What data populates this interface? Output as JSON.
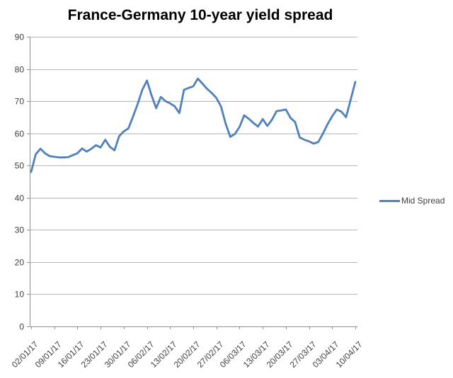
{
  "chart_data": {
    "type": "line",
    "title": "France-Germany 10-year yield spread",
    "xlabel": "",
    "ylabel": "",
    "ylim": [
      0,
      90
    ],
    "ytick_step": 10,
    "grid": "horizontal",
    "legend_position": "right",
    "x_ticklabels": [
      "02/01/17",
      "09/01/17",
      "16/01/17",
      "23/01/17",
      "30/01/17",
      "06/02/17",
      "13/02/17",
      "20/02/17",
      "27/02/17",
      "06/03/17",
      "13/03/17",
      "20/03/17",
      "27/03/17",
      "03/04/17",
      "10/04/17"
    ],
    "x_dates": [
      "02/01/17",
      "03/01/17",
      "04/01/17",
      "05/01/17",
      "06/01/17",
      "09/01/17",
      "10/01/17",
      "11/01/17",
      "12/01/17",
      "13/01/17",
      "16/01/17",
      "17/01/17",
      "18/01/17",
      "19/01/17",
      "20/01/17",
      "23/01/17",
      "24/01/17",
      "25/01/17",
      "26/01/17",
      "27/01/17",
      "30/01/17",
      "31/01/17",
      "01/02/17",
      "02/02/17",
      "03/02/17",
      "06/02/17",
      "07/02/17",
      "08/02/17",
      "09/02/17",
      "10/02/17",
      "13/02/17",
      "14/02/17",
      "15/02/17",
      "16/02/17",
      "17/02/17",
      "20/02/17",
      "21/02/17",
      "22/02/17",
      "23/02/17",
      "24/02/17",
      "27/02/17",
      "28/02/17",
      "01/03/17",
      "02/03/17",
      "03/03/17",
      "06/03/17",
      "07/03/17",
      "08/03/17",
      "09/03/17",
      "10/03/17",
      "13/03/17",
      "14/03/17",
      "15/03/17",
      "16/03/17",
      "17/03/17",
      "20/03/17",
      "21/03/17",
      "22/03/17",
      "23/03/17",
      "24/03/17",
      "27/03/17",
      "28/03/17",
      "29/03/17",
      "30/03/17",
      "31/03/17",
      "03/04/17",
      "04/04/17",
      "05/04/17",
      "06/04/17",
      "07/04/17",
      "10/04/17"
    ],
    "series": [
      {
        "name": "Mid Spread",
        "color": "#4F81BD",
        "values": [
          48.0,
          53.5,
          55.2,
          53.8,
          52.9,
          52.7,
          52.5,
          52.5,
          52.6,
          53.2,
          53.8,
          55.3,
          54.3,
          55.2,
          56.3,
          55.6,
          58.0,
          55.8,
          54.7,
          59.1,
          60.6,
          61.5,
          65.2,
          69.1,
          73.5,
          76.4,
          71.8,
          67.8,
          71.3,
          70.0,
          69.3,
          68.4,
          66.3,
          73.5,
          74.1,
          74.6,
          77.0,
          75.4,
          73.8,
          72.5,
          71.0,
          68.3,
          63.0,
          58.9,
          59.8,
          62.0,
          65.6,
          64.5,
          63.2,
          62.1,
          64.4,
          62.3,
          64.2,
          66.9,
          67.1,
          67.4,
          64.8,
          63.5,
          58.7,
          58.0,
          57.5,
          56.8,
          57.3,
          59.9,
          62.8,
          65.3,
          67.4,
          66.7,
          65.0,
          70.5,
          76.0
        ]
      }
    ]
  },
  "colors": {
    "line": "#4F81BD",
    "gridline": "#B6B6B6",
    "axis": "#8F8F8F",
    "label_text": "#3F3F3F",
    "title_text": "#000000",
    "background": "#FFFFFF"
  }
}
